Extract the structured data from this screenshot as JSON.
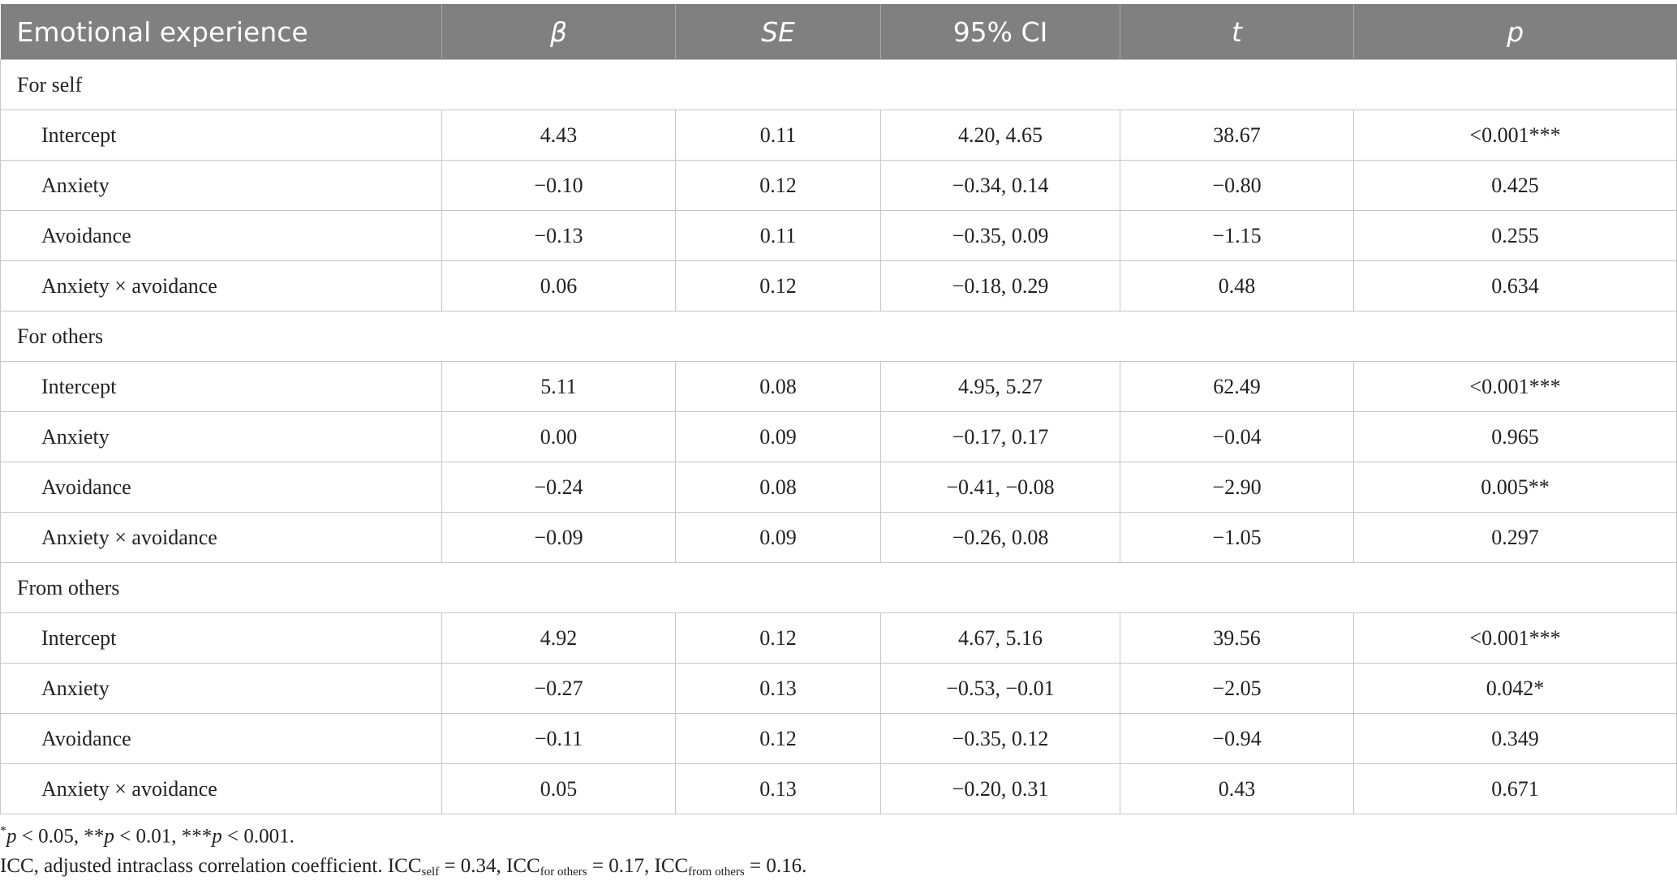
{
  "table": {
    "columns": [
      "Emotional experience",
      "β",
      "SE",
      "95% CI",
      "t",
      "p"
    ],
    "sections": [
      {
        "label": "For self",
        "rows": [
          [
            "Intercept",
            "4.43",
            "0.11",
            "4.20, 4.65",
            "38.67",
            "<0.001***"
          ],
          [
            "Anxiety",
            "−0.10",
            "0.12",
            "−0.34, 0.14",
            "−0.80",
            "0.425"
          ],
          [
            "Avoidance",
            "−0.13",
            "0.11",
            "−0.35, 0.09",
            "−1.15",
            "0.255"
          ],
          [
            "Anxiety × avoidance",
            "0.06",
            "0.12",
            "−0.18, 0.29",
            "0.48",
            "0.634"
          ]
        ]
      },
      {
        "label": "For others",
        "rows": [
          [
            "Intercept",
            "5.11",
            "0.08",
            "4.95, 5.27",
            "62.49",
            "<0.001***"
          ],
          [
            "Anxiety",
            "0.00",
            "0.09",
            "−0.17, 0.17",
            "−0.04",
            "0.965"
          ],
          [
            "Avoidance",
            "−0.24",
            "0.08",
            "−0.41, −0.08",
            "−2.90",
            "0.005**"
          ],
          [
            "Anxiety × avoidance",
            "−0.09",
            "0.09",
            "−0.26, 0.08",
            "−1.05",
            "0.297"
          ]
        ]
      },
      {
        "label": "From others",
        "rows": [
          [
            "Intercept",
            "4.92",
            "0.12",
            "4.67, 5.16",
            "39.56",
            "<0.001***"
          ],
          [
            "Anxiety",
            "−0.27",
            "0.13",
            "−0.53, −0.01",
            "−2.05",
            "0.042*"
          ],
          [
            "Avoidance",
            "−0.11",
            "0.12",
            "−0.35, 0.12",
            "−0.94",
            "0.349"
          ],
          [
            "Anxiety × avoidance",
            "0.05",
            "0.13",
            "−0.20, 0.31",
            "0.43",
            "0.671"
          ]
        ]
      }
    ]
  },
  "footnotes": [
    [
      "*",
      "p",
      " < 0.05, **",
      "p",
      " < 0.01, ***",
      "p",
      " < 0.001."
    ],
    [
      "ICC, adjusted intraclass correlation coefficient. ICC",
      "self",
      " = 0.34, ICC",
      "for others",
      " = 0.17, ICC",
      "from others",
      " = 0.16."
    ]
  ]
}
